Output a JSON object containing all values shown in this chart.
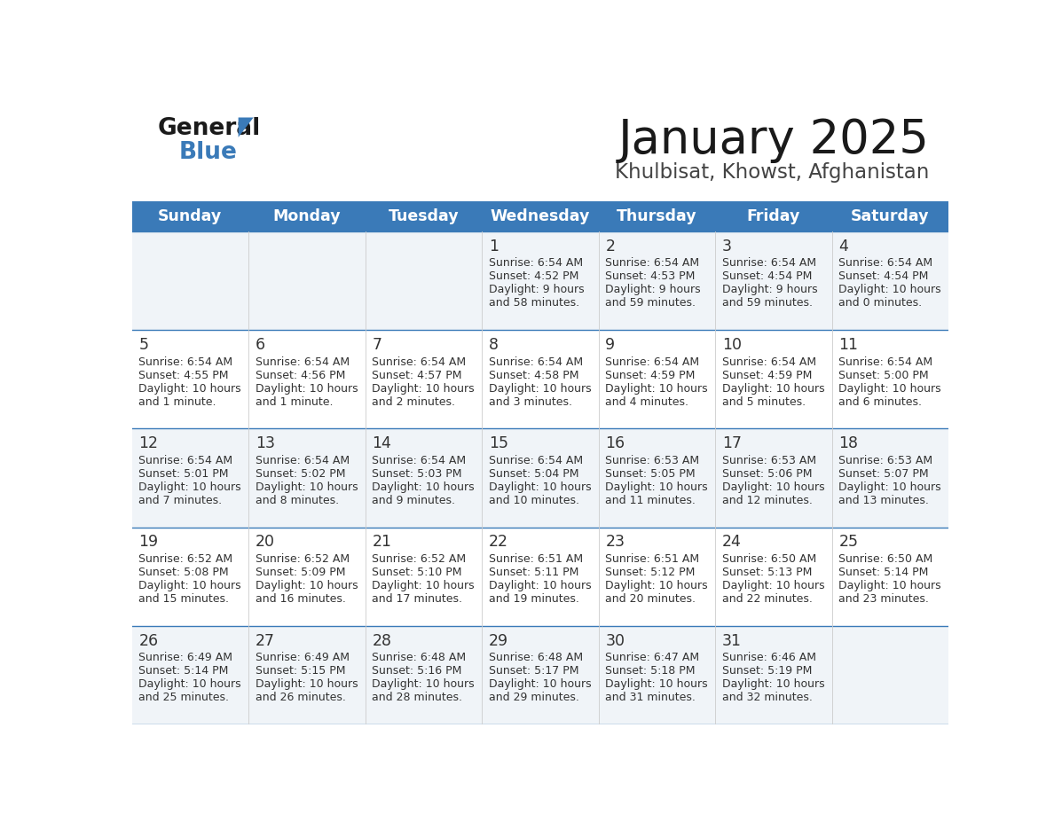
{
  "title": "January 2025",
  "subtitle": "Khulbisat, Khowst, Afghanistan",
  "header_bg": "#3A7AB8",
  "header_text_color": "#FFFFFF",
  "day_names": [
    "Sunday",
    "Monday",
    "Tuesday",
    "Wednesday",
    "Thursday",
    "Friday",
    "Saturday"
  ],
  "row_bg_even": "#F0F4F8",
  "row_bg_odd": "#FFFFFF",
  "cell_text_color": "#333333",
  "grid_line_color": "#3A7AB8",
  "calendar": [
    [
      {
        "day": "",
        "sunrise": "",
        "sunset": "",
        "daylight_line1": "",
        "daylight_line2": ""
      },
      {
        "day": "",
        "sunrise": "",
        "sunset": "",
        "daylight_line1": "",
        "daylight_line2": ""
      },
      {
        "day": "",
        "sunrise": "",
        "sunset": "",
        "daylight_line1": "",
        "daylight_line2": ""
      },
      {
        "day": "1",
        "sunrise": "6:54 AM",
        "sunset": "4:52 PM",
        "daylight_line1": "Daylight: 9 hours",
        "daylight_line2": "and 58 minutes."
      },
      {
        "day": "2",
        "sunrise": "6:54 AM",
        "sunset": "4:53 PM",
        "daylight_line1": "Daylight: 9 hours",
        "daylight_line2": "and 59 minutes."
      },
      {
        "day": "3",
        "sunrise": "6:54 AM",
        "sunset": "4:54 PM",
        "daylight_line1": "Daylight: 9 hours",
        "daylight_line2": "and 59 minutes."
      },
      {
        "day": "4",
        "sunrise": "6:54 AM",
        "sunset": "4:54 PM",
        "daylight_line1": "Daylight: 10 hours",
        "daylight_line2": "and 0 minutes."
      }
    ],
    [
      {
        "day": "5",
        "sunrise": "6:54 AM",
        "sunset": "4:55 PM",
        "daylight_line1": "Daylight: 10 hours",
        "daylight_line2": "and 1 minute."
      },
      {
        "day": "6",
        "sunrise": "6:54 AM",
        "sunset": "4:56 PM",
        "daylight_line1": "Daylight: 10 hours",
        "daylight_line2": "and 1 minute."
      },
      {
        "day": "7",
        "sunrise": "6:54 AM",
        "sunset": "4:57 PM",
        "daylight_line1": "Daylight: 10 hours",
        "daylight_line2": "and 2 minutes."
      },
      {
        "day": "8",
        "sunrise": "6:54 AM",
        "sunset": "4:58 PM",
        "daylight_line1": "Daylight: 10 hours",
        "daylight_line2": "and 3 minutes."
      },
      {
        "day": "9",
        "sunrise": "6:54 AM",
        "sunset": "4:59 PM",
        "daylight_line1": "Daylight: 10 hours",
        "daylight_line2": "and 4 minutes."
      },
      {
        "day": "10",
        "sunrise": "6:54 AM",
        "sunset": "4:59 PM",
        "daylight_line1": "Daylight: 10 hours",
        "daylight_line2": "and 5 minutes."
      },
      {
        "day": "11",
        "sunrise": "6:54 AM",
        "sunset": "5:00 PM",
        "daylight_line1": "Daylight: 10 hours",
        "daylight_line2": "and 6 minutes."
      }
    ],
    [
      {
        "day": "12",
        "sunrise": "6:54 AM",
        "sunset": "5:01 PM",
        "daylight_line1": "Daylight: 10 hours",
        "daylight_line2": "and 7 minutes."
      },
      {
        "day": "13",
        "sunrise": "6:54 AM",
        "sunset": "5:02 PM",
        "daylight_line1": "Daylight: 10 hours",
        "daylight_line2": "and 8 minutes."
      },
      {
        "day": "14",
        "sunrise": "6:54 AM",
        "sunset": "5:03 PM",
        "daylight_line1": "Daylight: 10 hours",
        "daylight_line2": "and 9 minutes."
      },
      {
        "day": "15",
        "sunrise": "6:54 AM",
        "sunset": "5:04 PM",
        "daylight_line1": "Daylight: 10 hours",
        "daylight_line2": "and 10 minutes."
      },
      {
        "day": "16",
        "sunrise": "6:53 AM",
        "sunset": "5:05 PM",
        "daylight_line1": "Daylight: 10 hours",
        "daylight_line2": "and 11 minutes."
      },
      {
        "day": "17",
        "sunrise": "6:53 AM",
        "sunset": "5:06 PM",
        "daylight_line1": "Daylight: 10 hours",
        "daylight_line2": "and 12 minutes."
      },
      {
        "day": "18",
        "sunrise": "6:53 AM",
        "sunset": "5:07 PM",
        "daylight_line1": "Daylight: 10 hours",
        "daylight_line2": "and 13 minutes."
      }
    ],
    [
      {
        "day": "19",
        "sunrise": "6:52 AM",
        "sunset": "5:08 PM",
        "daylight_line1": "Daylight: 10 hours",
        "daylight_line2": "and 15 minutes."
      },
      {
        "day": "20",
        "sunrise": "6:52 AM",
        "sunset": "5:09 PM",
        "daylight_line1": "Daylight: 10 hours",
        "daylight_line2": "and 16 minutes."
      },
      {
        "day": "21",
        "sunrise": "6:52 AM",
        "sunset": "5:10 PM",
        "daylight_line1": "Daylight: 10 hours",
        "daylight_line2": "and 17 minutes."
      },
      {
        "day": "22",
        "sunrise": "6:51 AM",
        "sunset": "5:11 PM",
        "daylight_line1": "Daylight: 10 hours",
        "daylight_line2": "and 19 minutes."
      },
      {
        "day": "23",
        "sunrise": "6:51 AM",
        "sunset": "5:12 PM",
        "daylight_line1": "Daylight: 10 hours",
        "daylight_line2": "and 20 minutes."
      },
      {
        "day": "24",
        "sunrise": "6:50 AM",
        "sunset": "5:13 PM",
        "daylight_line1": "Daylight: 10 hours",
        "daylight_line2": "and 22 minutes."
      },
      {
        "day": "25",
        "sunrise": "6:50 AM",
        "sunset": "5:14 PM",
        "daylight_line1": "Daylight: 10 hours",
        "daylight_line2": "and 23 minutes."
      }
    ],
    [
      {
        "day": "26",
        "sunrise": "6:49 AM",
        "sunset": "5:14 PM",
        "daylight_line1": "Daylight: 10 hours",
        "daylight_line2": "and 25 minutes."
      },
      {
        "day": "27",
        "sunrise": "6:49 AM",
        "sunset": "5:15 PM",
        "daylight_line1": "Daylight: 10 hours",
        "daylight_line2": "and 26 minutes."
      },
      {
        "day": "28",
        "sunrise": "6:48 AM",
        "sunset": "5:16 PM",
        "daylight_line1": "Daylight: 10 hours",
        "daylight_line2": "and 28 minutes."
      },
      {
        "day": "29",
        "sunrise": "6:48 AM",
        "sunset": "5:17 PM",
        "daylight_line1": "Daylight: 10 hours",
        "daylight_line2": "and 29 minutes."
      },
      {
        "day": "30",
        "sunrise": "6:47 AM",
        "sunset": "5:18 PM",
        "daylight_line1": "Daylight: 10 hours",
        "daylight_line2": "and 31 minutes."
      },
      {
        "day": "31",
        "sunrise": "6:46 AM",
        "sunset": "5:19 PM",
        "daylight_line1": "Daylight: 10 hours",
        "daylight_line2": "and 32 minutes."
      },
      {
        "day": "",
        "sunrise": "",
        "sunset": "",
        "daylight_line1": "",
        "daylight_line2": ""
      }
    ]
  ]
}
